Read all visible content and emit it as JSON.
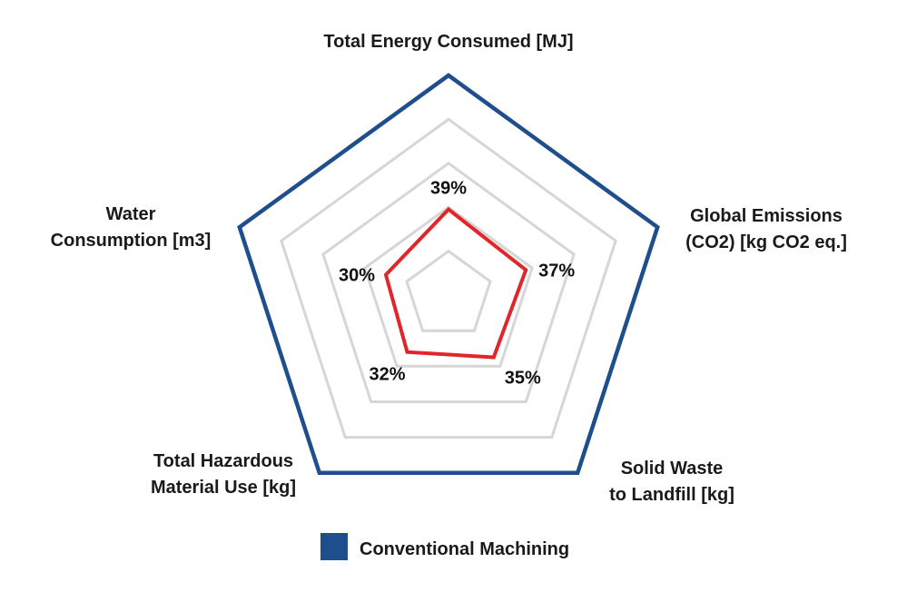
{
  "chart_data": {
    "type": "radar",
    "axes": [
      "Total Energy Consumed [MJ]",
      "Global Emissions (CO2) [kg CO2 eq.]",
      "Solid Waste to Landfill [kg]",
      "Total Hazardous Material Use [kg]",
      "Water Consumption [m3]"
    ],
    "axis_label_lines": [
      [
        "Total Energy Consumed [MJ]"
      ],
      [
        "Global Emissions",
        "(CO2) [kg CO2 eq.]"
      ],
      [
        "Solid Waste",
        "to Landfill [kg]"
      ],
      [
        "Total Hazardous",
        "Material Use [kg]"
      ],
      [
        "Water",
        "Consumption [m3]"
      ]
    ],
    "range": [
      0,
      100
    ],
    "grid_levels": [
      20,
      40,
      60,
      80,
      100
    ],
    "series": [
      {
        "name": "Conventional Machining",
        "values": [
          100,
          100,
          100,
          100,
          100
        ],
        "color": "#1f4e8c"
      },
      {
        "values": [
          39,
          37,
          35,
          32,
          30
        ],
        "labels": [
          "39%",
          "37%",
          "35%",
          "32%",
          "30%"
        ],
        "color": "#e0262b"
      }
    ],
    "grid_color": "#d6d6d6",
    "legend": {
      "position": "bottom",
      "entries": [
        "Conventional Machining"
      ]
    }
  }
}
